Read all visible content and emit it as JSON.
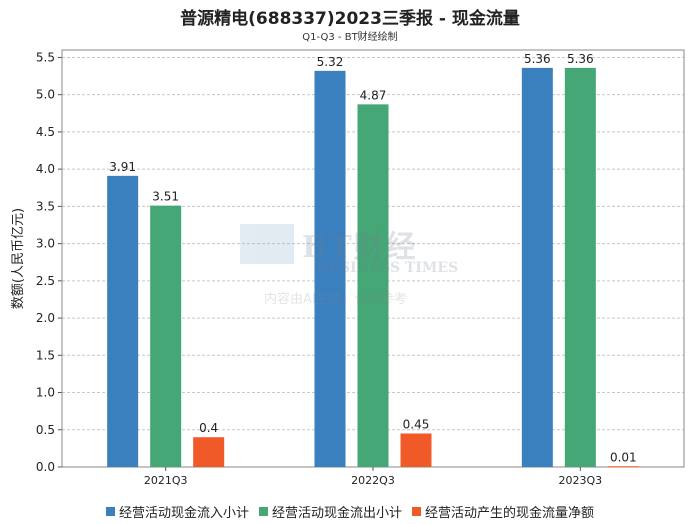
{
  "chart_data": {
    "type": "bar",
    "title": "普源精电(688337)2023三季报 - 现金流量",
    "subtitle": "Q1-Q3 - BT财经绘制",
    "xlabel": "",
    "ylabel": "数额(人民币亿元)",
    "ylim": [
      0,
      5.6
    ],
    "yticks": [
      "0.0",
      "0.5",
      "1.0",
      "1.5",
      "2.0",
      "2.5",
      "3.0",
      "3.5",
      "4.0",
      "4.5",
      "5.0",
      "5.5"
    ],
    "categories": [
      "2021Q3",
      "2022Q3",
      "2023Q3"
    ],
    "series": [
      {
        "name": "经营活动现金流入小计",
        "color": "#3a7fbe",
        "values": [
          3.91,
          5.32,
          5.36
        ],
        "labels": [
          "3.91",
          "5.32",
          "5.36"
        ]
      },
      {
        "name": "经营活动现金流出小计",
        "color": "#45a676",
        "values": [
          3.51,
          4.87,
          5.36
        ],
        "labels": [
          "3.51",
          "4.87",
          "5.36"
        ]
      },
      {
        "name": "经营活动产生的现金流量净额",
        "color": "#f05a28",
        "values": [
          0.4,
          0.45,
          0.01
        ],
        "labels": [
          "0.4",
          "0.45",
          "0.01"
        ]
      }
    ],
    "grid": true,
    "legend_position": "bottom"
  },
  "watermark": {
    "logo_cn": "BT财经",
    "logo_en": "BUSINESS TIMES",
    "note": "内容由AI生成，仅供参考"
  }
}
